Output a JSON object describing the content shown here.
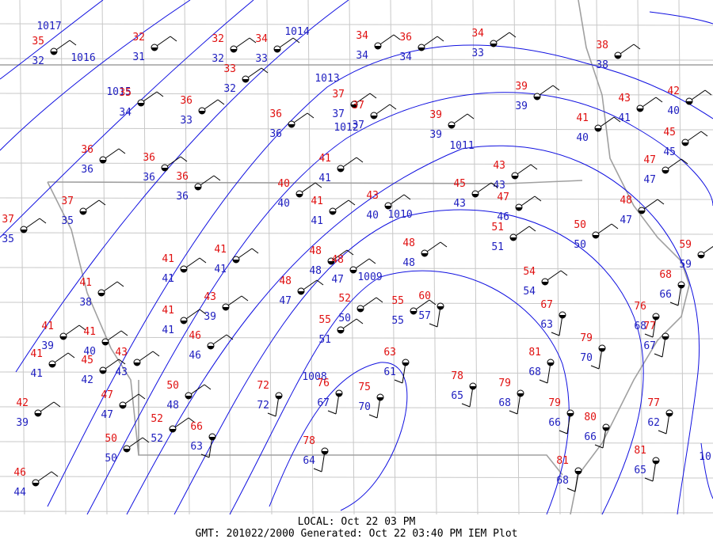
{
  "isobar_labels": [
    "1017",
    "1016",
    "1015",
    "1014",
    "1013",
    "1012",
    "1011",
    "1010",
    "1009",
    "1008",
    "10"
  ],
  "stations": [
    {
      "temp": 35,
      "dew": 32
    },
    {
      "temp": 32,
      "dew": 31
    },
    {
      "temp": 32,
      "dew": 32
    },
    {
      "temp": 34,
      "dew": 33
    },
    {
      "temp": 34,
      "dew": 34
    },
    {
      "temp": 36,
      "dew": 34
    },
    {
      "temp": 34,
      "dew": 33
    },
    {
      "temp": 38,
      "dew": 38
    },
    {
      "temp": 33,
      "dew": 32
    },
    {
      "temp": 35,
      "dew": 34
    },
    {
      "temp": 36,
      "dew": 33
    },
    {
      "temp": 36,
      "dew": 36
    },
    {
      "temp": 37,
      "dew": 37
    },
    {
      "temp": 37,
      "dew": 37
    },
    {
      "temp": 39,
      "dew": 39
    },
    {
      "temp": 43,
      "dew": 41
    },
    {
      "temp": 42,
      "dew": 40
    },
    {
      "temp": 39,
      "dew": 39
    },
    {
      "temp": 41,
      "dew": 40
    },
    {
      "temp": 36,
      "dew": 36
    },
    {
      "temp": 36,
      "dew": 36
    },
    {
      "temp": 36,
      "dew": 36
    },
    {
      "temp": 41,
      "dew": 41
    },
    {
      "temp": 45,
      "dew": 45
    },
    {
      "temp": 47,
      "dew": 47
    },
    {
      "temp": 40,
      "dew": 40
    },
    {
      "temp": 43,
      "dew": 43
    },
    {
      "temp": 45,
      "dew": 43
    },
    {
      "temp": 43,
      "dew": 40
    },
    {
      "temp": 47,
      "dew": 46
    },
    {
      "temp": 41,
      "dew": 41
    },
    {
      "temp": 37,
      "dew": 35
    },
    {
      "temp": 37,
      "dew": 35
    },
    {
      "temp": 48,
      "dew": 47
    },
    {
      "temp": 51,
      "dew": 51
    },
    {
      "temp": 50,
      "dew": 50
    },
    {
      "temp": 48,
      "dew": 48
    },
    {
      "temp": 41,
      "dew": 41
    },
    {
      "temp": 41,
      "dew": 41
    },
    {
      "temp": 48,
      "dew": 48
    },
    {
      "temp": 48,
      "dew": 47
    },
    {
      "temp": 59,
      "dew": 59
    },
    {
      "temp": 68,
      "dew": 66
    },
    {
      "temp": 54,
      "dew": 54
    },
    {
      "temp": 41,
      "dew": 38
    },
    {
      "temp": 48,
      "dew": 47
    },
    {
      "temp": 43,
      "dew": 39
    },
    {
      "temp": 52,
      "dew": 50
    },
    {
      "temp": 55,
      "dew": 55
    },
    {
      "temp": 60,
      "dew": 57
    },
    {
      "temp": 67,
      "dew": 63
    },
    {
      "temp": 76,
      "dew": 68
    },
    {
      "temp": 77,
      "dew": 67
    },
    {
      "temp": 41,
      "dew": 41
    },
    {
      "temp": 55,
      "dew": 51
    },
    {
      "temp": 41,
      "dew": 39
    },
    {
      "temp": 41,
      "dew": 40
    },
    {
      "temp": 46,
      "dew": 46
    },
    {
      "temp": 79,
      "dew": 70
    },
    {
      "temp": 43,
      "dew": 43
    },
    {
      "temp": 41,
      "dew": 41
    },
    {
      "temp": 45,
      "dew": 42
    },
    {
      "temp": 63,
      "dew": 61
    },
    {
      "temp": 81,
      "dew": 68
    },
    {
      "temp": 50,
      "dew": 48
    },
    {
      "temp": 72,
      "dew": 72
    },
    {
      "temp": 76,
      "dew": 67
    },
    {
      "temp": 75,
      "dew": 70
    },
    {
      "temp": 78,
      "dew": 65
    },
    {
      "temp": 79,
      "dew": 68
    },
    {
      "temp": 79,
      "dew": 66
    },
    {
      "temp": 77,
      "dew": 62
    },
    {
      "temp": 47,
      "dew": 47
    },
    {
      "temp": 42,
      "dew": 39
    },
    {
      "temp": 52,
      "dew": 52
    },
    {
      "temp": 66,
      "dew": 63
    },
    {
      "temp": 80,
      "dew": 66
    },
    {
      "temp": 50,
      "dew": 50
    },
    {
      "temp": 78,
      "dew": 64
    },
    {
      "temp": 81,
      "dew": 65
    },
    {
      "temp": 81,
      "dew": 68
    },
    {
      "temp": 46,
      "dew": 44
    }
  ],
  "footer": {
    "local": "LOCAL: Oct 22 03 PM",
    "generated": "GMT: 201022/2000 Generated: Oct 22 03:40 PM IEM Plot"
  }
}
